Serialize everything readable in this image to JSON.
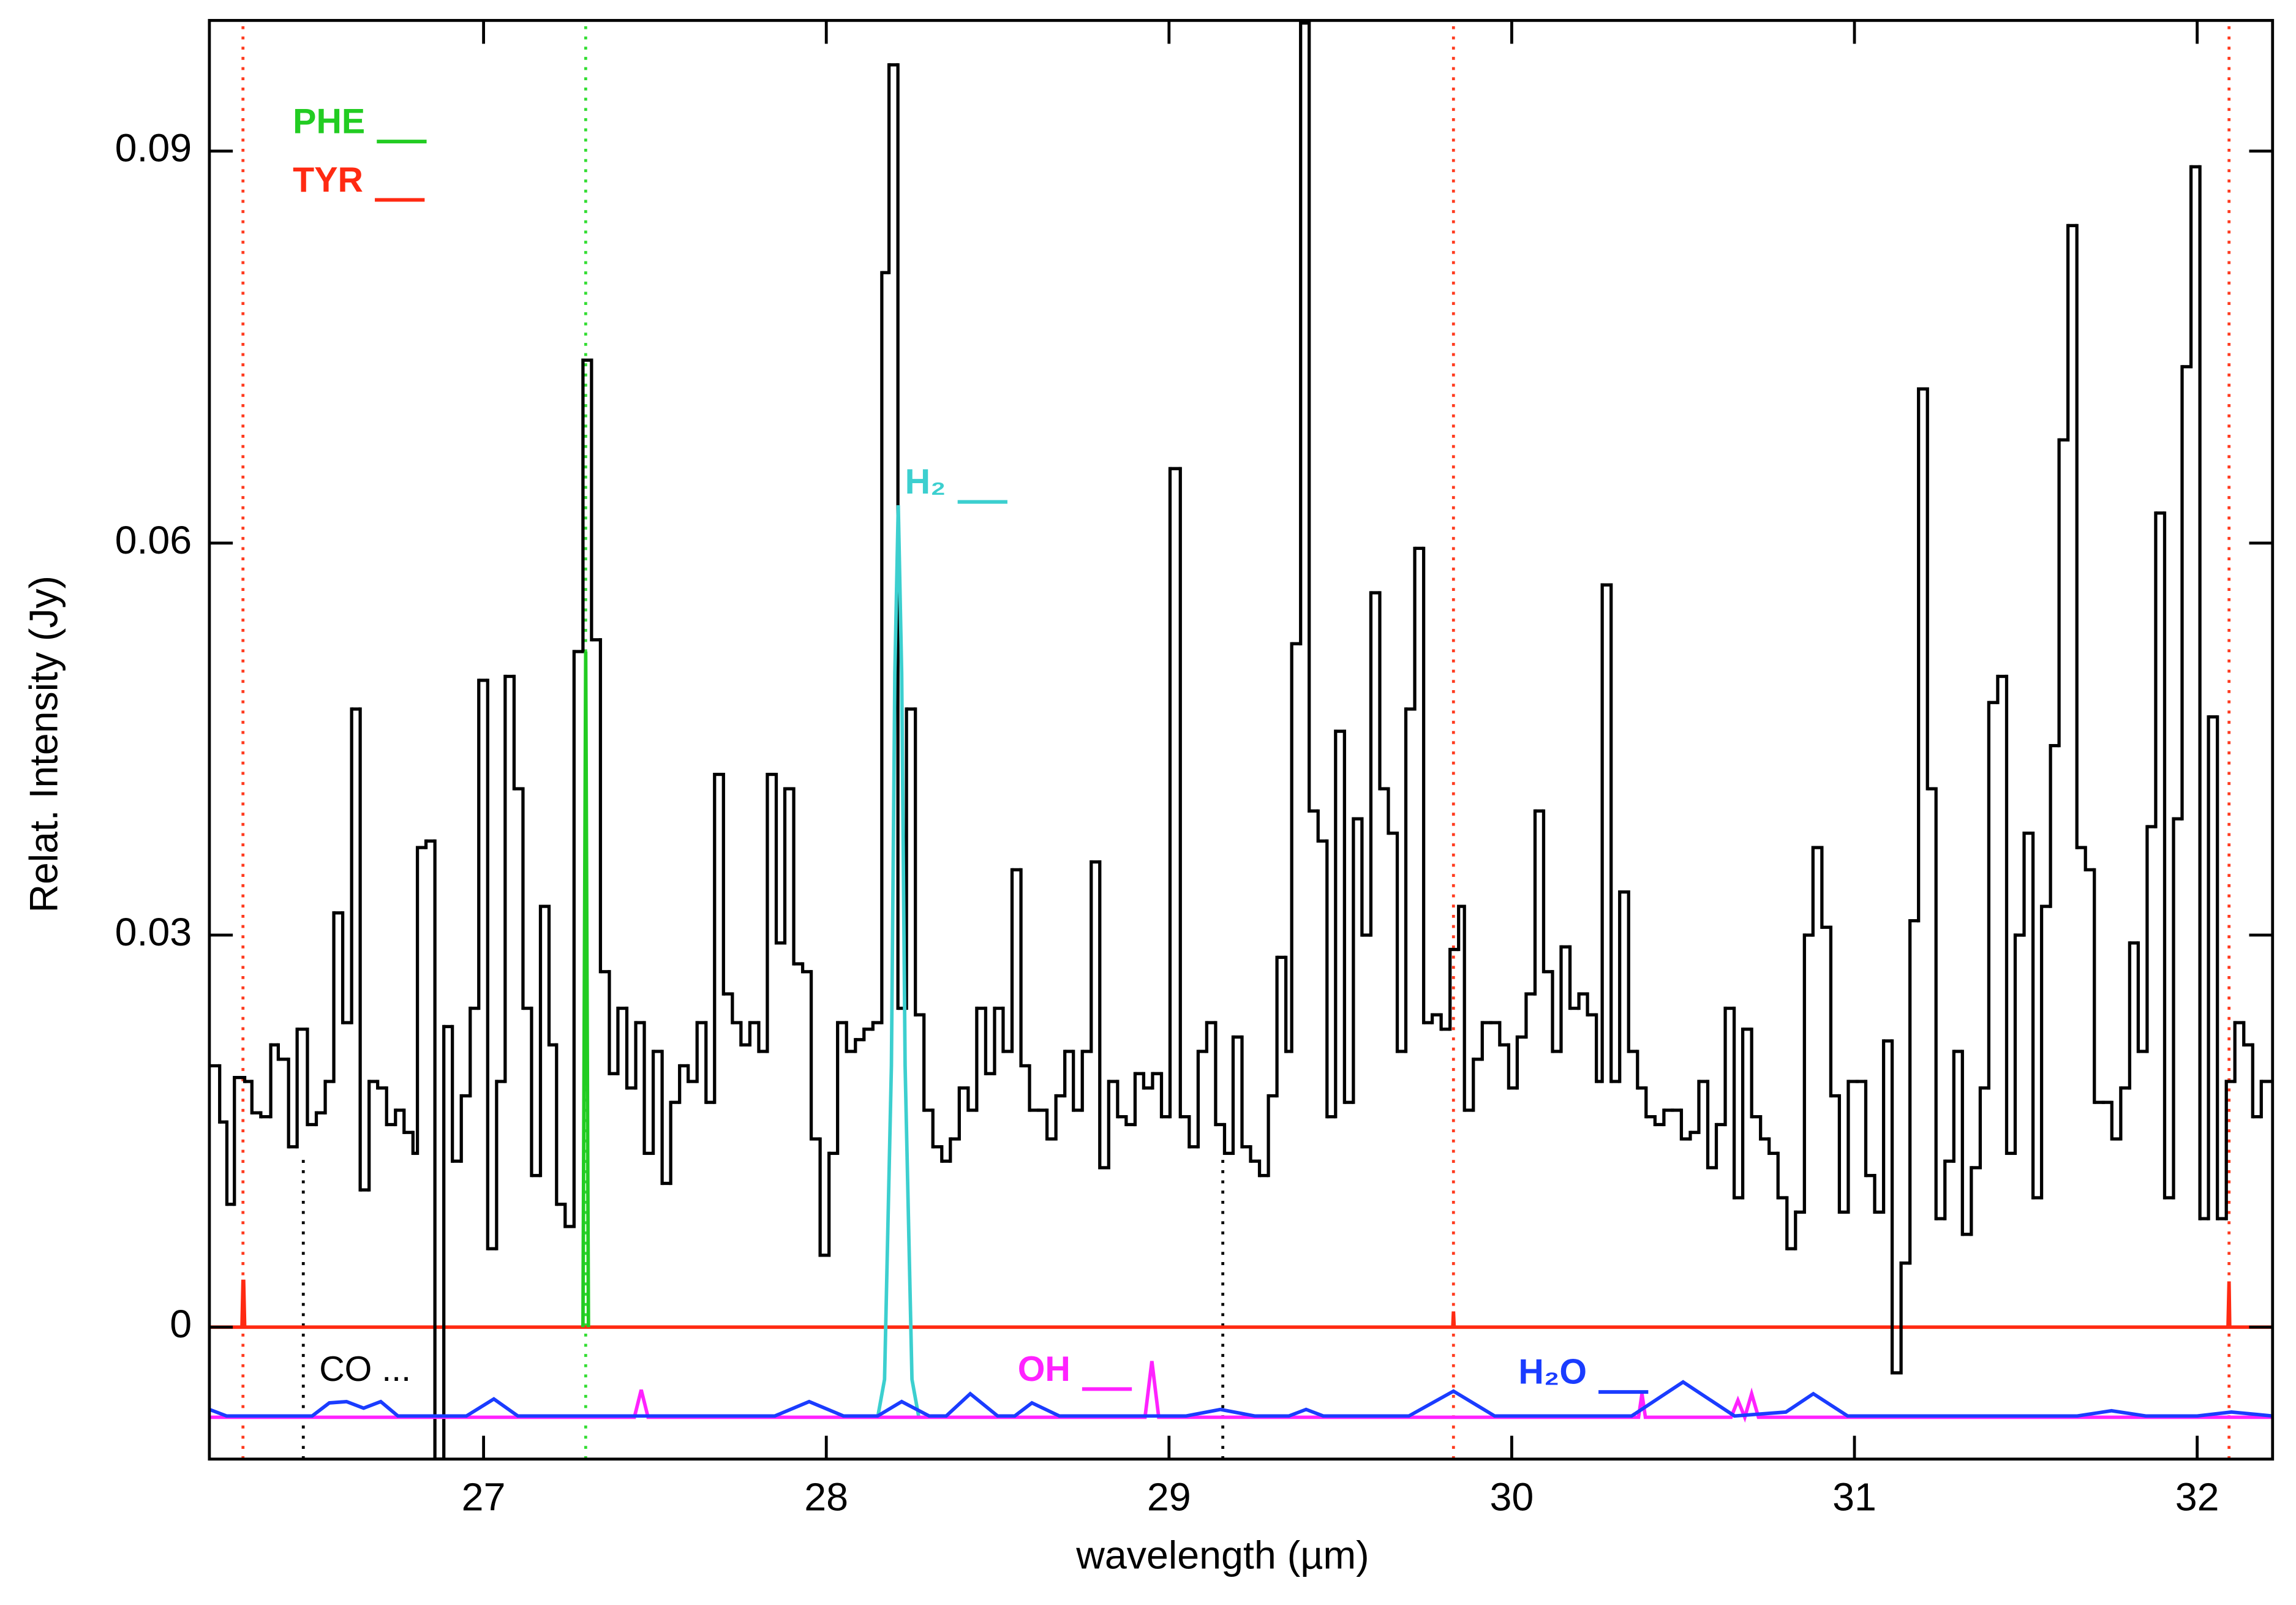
{
  "chart_data": {
    "type": "line",
    "xlabel": "wavelength (µm)",
    "ylabel": "Relat. Intensity (Jy)",
    "xlim": [
      26.2,
      32.22
    ],
    "ylim": [
      -0.0101,
      0.1
    ],
    "xticks": [
      27,
      28,
      29,
      30,
      31,
      32
    ],
    "yticks": [
      0,
      0.03,
      0.06,
      0.09
    ],
    "series": [
      {
        "color": "#000000",
        "drawstyle": "steps-post",
        "x": [
          26.2,
          26.23,
          26.251,
          26.273,
          26.303,
          26.324,
          26.35,
          26.379,
          26.401,
          26.431,
          26.456,
          26.486,
          26.512,
          26.538,
          26.563,
          26.589,
          26.615,
          26.64,
          26.666,
          26.691,
          26.717,
          26.743,
          26.768,
          26.794,
          26.807,
          26.832,
          26.858,
          26.884,
          26.909,
          26.935,
          26.961,
          26.986,
          27.012,
          27.038,
          27.063,
          27.089,
          27.115,
          27.14,
          27.166,
          27.191,
          27.213,
          27.238,
          27.264,
          27.29,
          27.315,
          27.341,
          27.367,
          27.392,
          27.418,
          27.444,
          27.469,
          27.495,
          27.521,
          27.546,
          27.572,
          27.597,
          27.623,
          27.649,
          27.674,
          27.7,
          27.726,
          27.751,
          27.777,
          27.803,
          27.828,
          27.854,
          27.879,
          27.905,
          27.931,
          27.956,
          27.982,
          28.008,
          28.033,
          28.059,
          28.085,
          28.11,
          28.136,
          28.162,
          28.183,
          28.209,
          28.234,
          28.26,
          28.285,
          28.311,
          28.337,
          28.362,
          28.388,
          28.414,
          28.439,
          28.465,
          28.491,
          28.516,
          28.542,
          28.568,
          28.593,
          28.619,
          28.644,
          28.67,
          28.696,
          28.721,
          28.747,
          28.773,
          28.798,
          28.824,
          28.85,
          28.875,
          28.901,
          28.926,
          28.952,
          28.978,
          29.003,
          29.033,
          29.059,
          29.085,
          29.11,
          29.136,
          29.162,
          29.187,
          29.213,
          29.238,
          29.264,
          29.29,
          29.315,
          29.341,
          29.358,
          29.384,
          29.409,
          29.435,
          29.461,
          29.486,
          29.512,
          29.538,
          29.563,
          29.589,
          29.615,
          29.64,
          29.666,
          29.691,
          29.717,
          29.743,
          29.768,
          29.794,
          29.82,
          29.845,
          29.862,
          29.888,
          29.914,
          29.939,
          29.965,
          29.991,
          30.016,
          30.042,
          30.068,
          30.093,
          30.119,
          30.144,
          30.17,
          30.196,
          30.221,
          30.247,
          30.264,
          30.29,
          30.315,
          30.341,
          30.367,
          30.392,
          30.418,
          30.444,
          30.469,
          30.495,
          30.521,
          30.546,
          30.572,
          30.597,
          30.623,
          30.649,
          30.674,
          30.7,
          30.726,
          30.751,
          30.777,
          30.803,
          30.828,
          30.854,
          30.879,
          30.905,
          30.931,
          30.956,
          30.982,
          31.008,
          31.033,
          31.059,
          31.085,
          31.11,
          31.136,
          31.162,
          31.187,
          31.213,
          31.238,
          31.264,
          31.29,
          31.315,
          31.341,
          31.367,
          31.392,
          31.418,
          31.444,
          31.469,
          31.495,
          31.521,
          31.546,
          31.572,
          31.597,
          31.623,
          31.649,
          31.674,
          31.7,
          31.726,
          31.751,
          31.777,
          31.803,
          31.828,
          31.854,
          31.879,
          31.905,
          31.931,
          31.956,
          31.982,
          32.008,
          32.033,
          32.059,
          32.085,
          32.11,
          32.136,
          32.162,
          32.187
        ],
        "values": [
          0.02,
          0.0157,
          0.0094,
          0.0191,
          0.0188,
          0.0164,
          0.0161,
          0.0216,
          0.0205,
          0.0138,
          0.0228,
          0.0155,
          0.0164,
          0.0188,
          0.0317,
          0.0233,
          0.0473,
          0.0105,
          0.0188,
          0.0183,
          0.0155,
          0.0166,
          0.0149,
          0.0133,
          0.0367,
          0.0372,
          -0.0101,
          0.023,
          0.0127,
          0.0177,
          0.0244,
          0.0495,
          0.006,
          0.0188,
          0.0498,
          0.0412,
          0.0244,
          0.0116,
          0.0322,
          0.0216,
          0.0094,
          0.0077,
          0.0517,
          0.074,
          0.0526,
          0.0272,
          0.0194,
          0.0244,
          0.0183,
          0.0233,
          0.0133,
          0.0211,
          0.011,
          0.0172,
          0.02,
          0.0188,
          0.0233,
          0.0172,
          0.0423,
          0.0255,
          0.0233,
          0.0216,
          0.0233,
          0.0211,
          0.0423,
          0.0294,
          0.0412,
          0.0278,
          0.0272,
          0.0144,
          0.0055,
          0.0133,
          0.0233,
          0.0211,
          0.022,
          0.0228,
          0.0233,
          0.0807,
          0.0966,
          0.0244,
          0.0473,
          0.0239,
          0.0166,
          0.0138,
          0.0127,
          0.0144,
          0.0183,
          0.0166,
          0.0244,
          0.0194,
          0.0244,
          0.0211,
          0.035,
          0.02,
          0.0166,
          0.0166,
          0.0144,
          0.0177,
          0.0211,
          0.0166,
          0.0211,
          0.0356,
          0.0122,
          0.0188,
          0.0161,
          0.0155,
          0.0194,
          0.0183,
          0.0194,
          0.0161,
          0.0657,
          0.0161,
          0.0138,
          0.0211,
          0.0233,
          0.0155,
          0.0133,
          0.0222,
          0.0138,
          0.0127,
          0.0116,
          0.0177,
          0.0283,
          0.0211,
          0.0523,
          0.0998,
          0.0395,
          0.0372,
          0.0161,
          0.0456,
          0.0172,
          0.0389,
          0.03,
          0.0562,
          0.0412,
          0.0378,
          0.0211,
          0.0473,
          0.0596,
          0.0233,
          0.0239,
          0.0228,
          0.0289,
          0.0322,
          0.0166,
          0.0205,
          0.0233,
          0.0233,
          0.0216,
          0.0183,
          0.0222,
          0.0255,
          0.0395,
          0.0272,
          0.0211,
          0.0291,
          0.0244,
          0.0255,
          0.0239,
          0.0188,
          0.0568,
          0.0188,
          0.0333,
          0.0211,
          0.0183,
          0.0161,
          0.0155,
          0.0166,
          0.0166,
          0.0144,
          0.0149,
          0.0188,
          0.0122,
          0.0155,
          0.0244,
          0.0099,
          0.0228,
          0.0161,
          0.0144,
          0.0133,
          0.0099,
          0.006,
          0.0088,
          0.03,
          0.0367,
          0.0306,
          0.0177,
          0.0088,
          0.0188,
          0.0188,
          0.0116,
          0.0088,
          0.0219,
          -0.0035,
          0.0049,
          0.0311,
          0.0718,
          0.0412,
          0.0083,
          0.0127,
          0.0211,
          0.0071,
          0.0122,
          0.0183,
          0.0478,
          0.0498,
          0.0133,
          0.03,
          0.0378,
          0.0099,
          0.0322,
          0.0445,
          0.0679,
          0.0843,
          0.0367,
          0.035,
          0.0172,
          0.0172,
          0.0144,
          0.0183,
          0.0294,
          0.0211,
          0.0383,
          0.0623,
          0.0099,
          0.0389,
          0.0735,
          0.0888,
          0.0083,
          0.0467,
          0.0083,
          0.0188,
          0.0233,
          0.0216,
          0.0161,
          0.0188
        ]
      },
      {
        "name": "PHE",
        "color": "#22cc22",
        "x": [
          27.29,
          27.298,
          27.306
        ],
        "values": [
          0,
          0.0517,
          0
        ]
      },
      {
        "name": "TYR",
        "color": "#ff2a12",
        "x": [
          26.2,
          26.295,
          26.298,
          26.3,
          26.303,
          29.828,
          29.83,
          29.832,
          32.09,
          32.093,
          32.095,
          32.22
        ],
        "values": [
          0,
          0,
          0.0035,
          0.0035,
          0,
          0,
          0.0012,
          0,
          0,
          0.0035,
          0,
          0
        ]
      },
      {
        "name": "H₂",
        "color": "#3ccfcf",
        "x": [
          28.15,
          28.17,
          28.19,
          28.2,
          28.21,
          28.22,
          28.23,
          28.25,
          28.27
        ],
        "values": [
          -0.0069,
          -0.004,
          0.02,
          0.05,
          0.0629,
          0.05,
          0.02,
          -0.004,
          -0.0069
        ]
      },
      {
        "name": "OH",
        "color": "#ff22ff",
        "x": [
          26.2,
          27.44,
          27.46,
          27.48,
          28.93,
          28.95,
          28.97,
          30.37,
          30.38,
          30.39,
          30.64,
          30.66,
          30.68,
          30.7,
          30.72,
          32.22
        ],
        "values": [
          -0.0069,
          -0.0069,
          -0.0048,
          -0.0069,
          -0.0069,
          -0.0026,
          -0.0069,
          -0.0069,
          -0.0051,
          -0.0069,
          -0.0069,
          -0.0056,
          -0.0069,
          -0.0051,
          -0.0069,
          -0.0069
        ]
      },
      {
        "name": "H₂O",
        "color": "#1a3cff",
        "x": [
          26.2,
          26.25,
          26.5,
          26.55,
          26.6,
          26.65,
          26.7,
          26.75,
          26.95,
          27.03,
          27.1,
          27.85,
          27.95,
          28.05,
          28.15,
          28.22,
          28.3,
          28.35,
          28.42,
          28.5,
          28.55,
          28.6,
          28.68,
          29.05,
          29.15,
          29.25,
          29.35,
          29.4,
          29.45,
          29.7,
          29.83,
          29.95,
          30.35,
          30.5,
          30.65,
          30.8,
          30.88,
          30.98,
          31.65,
          31.75,
          31.85,
          32.0,
          32.1,
          32.22
        ],
        "values": [
          -0.0063,
          -0.0068,
          -0.0068,
          -0.0058,
          -0.0057,
          -0.0062,
          -0.0057,
          -0.0068,
          -0.0068,
          -0.0055,
          -0.0068,
          -0.0068,
          -0.0057,
          -0.0068,
          -0.0068,
          -0.0057,
          -0.0068,
          -0.0068,
          -0.0051,
          -0.0068,
          -0.0068,
          -0.0058,
          -0.0068,
          -0.0068,
          -0.0063,
          -0.0068,
          -0.0068,
          -0.0063,
          -0.0068,
          -0.0068,
          -0.0049,
          -0.0068,
          -0.0068,
          -0.0042,
          -0.0068,
          -0.0065,
          -0.0051,
          -0.0068,
          -0.0068,
          -0.0064,
          -0.0068,
          -0.0068,
          -0.0065,
          -0.0068
        ]
      }
    ],
    "line_markers": [
      {
        "color": "#ff3b1f",
        "x": [
          26.298,
          29.83,
          32.093
        ]
      },
      {
        "color": "#33dd33",
        "x": [
          27.298
        ]
      },
      {
        "name": "CO ...",
        "color": "#000000",
        "x": [
          26.474,
          29.157
        ],
        "ytop": 0.0133
      }
    ]
  }
}
